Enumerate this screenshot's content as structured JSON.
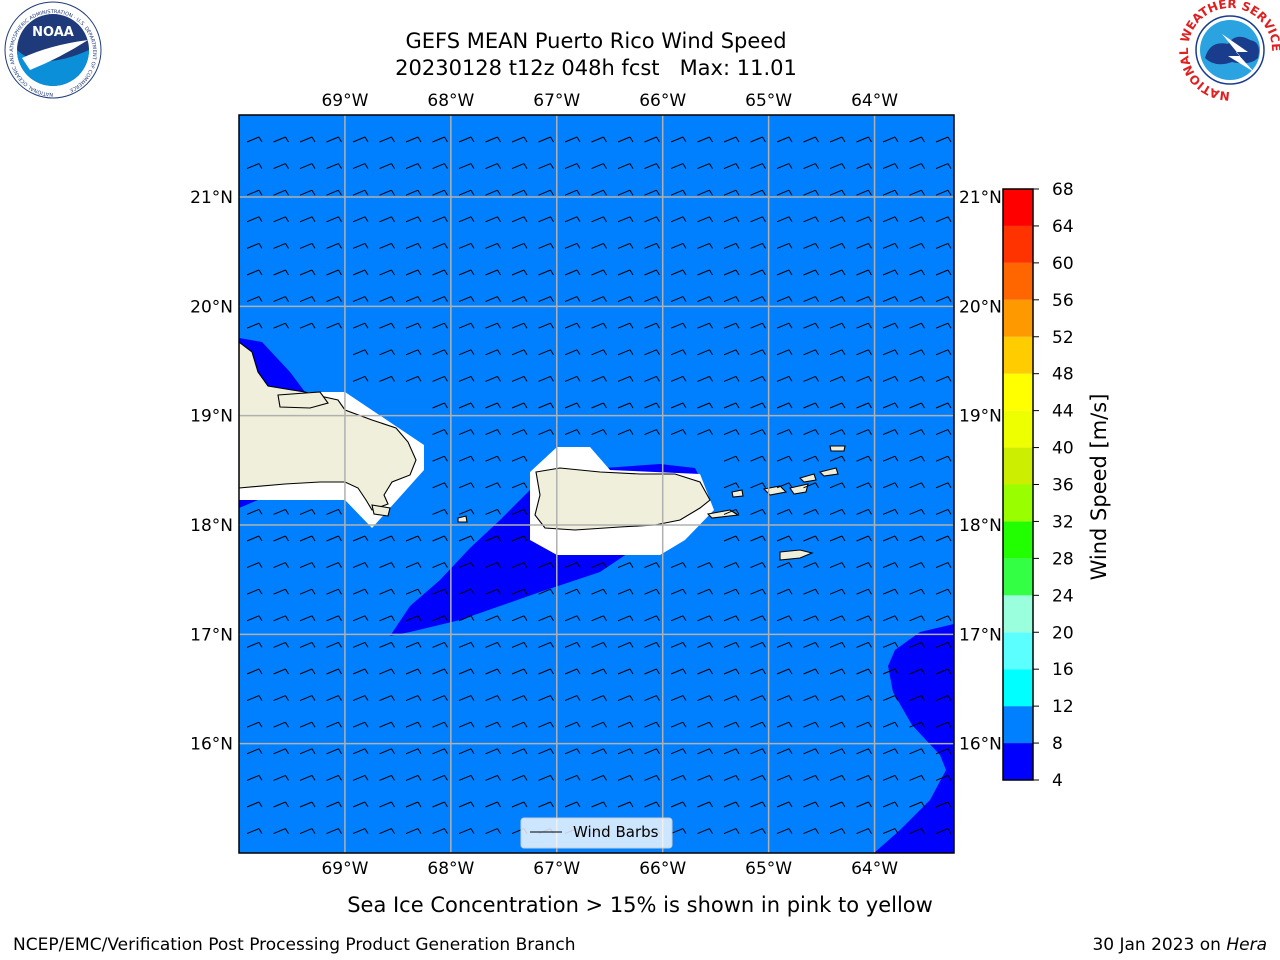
{
  "title": {
    "line1": "GEFS MEAN Puerto Rico Wind Speed",
    "line2": "20230128 t12z 048h fcst   Max: 11.01"
  },
  "map": {
    "lon_range": [
      -70.0,
      -63.25
    ],
    "lat_range": [
      15.0,
      21.75
    ],
    "lon_ticks": [
      {
        "value": -69,
        "label": "69°W"
      },
      {
        "value": -68,
        "label": "68°W"
      },
      {
        "value": -67,
        "label": "67°W"
      },
      {
        "value": -66,
        "label": "66°W"
      },
      {
        "value": -65,
        "label": "65°W"
      },
      {
        "value": -64,
        "label": "64°W"
      }
    ],
    "lat_ticks": [
      {
        "value": 21,
        "label": "21°N"
      },
      {
        "value": 20,
        "label": "20°N"
      },
      {
        "value": 19,
        "label": "19°N"
      },
      {
        "value": 18,
        "label": "18°N"
      },
      {
        "value": 17,
        "label": "17°N"
      },
      {
        "value": 16,
        "label": "16°N"
      }
    ],
    "background_color": "#0080ff",
    "low_wind_color": "#0000ff",
    "land_color": "#efefdb",
    "grid_color": "#b0b0b0",
    "legend_label": "Wind Barbs"
  },
  "colorbar": {
    "label": "Wind Speed [m/s]",
    "bounds": [
      4,
      8,
      12,
      16,
      20,
      24,
      28,
      32,
      36,
      40,
      44,
      48,
      52,
      56,
      60,
      64,
      68
    ],
    "colors": [
      "#0000ff",
      "#0080ff",
      "#00ffff",
      "#5cffff",
      "#99ffdd",
      "#33ff44",
      "#22ff00",
      "#99ff00",
      "#ccee00",
      "#eeff00",
      "#ffff00",
      "#ffcc00",
      "#ff9900",
      "#ff6600",
      "#ff3300",
      "#ff0000"
    ]
  },
  "subtitle": "Sea Ice Concentration > 15% is shown in pink to yellow",
  "footer": {
    "left": "NCEP/EMC/Verification Post Processing Product Generation Branch",
    "date": "30 Jan 2023 on ",
    "machine": "Hera"
  },
  "logos": {
    "noaa_text": "NOAA",
    "noaa_ring": "NATIONAL OCEANIC AND ATMOSPHERIC ADMINISTRATION · U.S. DEPARTMENT OF COMMERCE",
    "nws_ring": "NATIONAL WEATHER SERVICE"
  }
}
